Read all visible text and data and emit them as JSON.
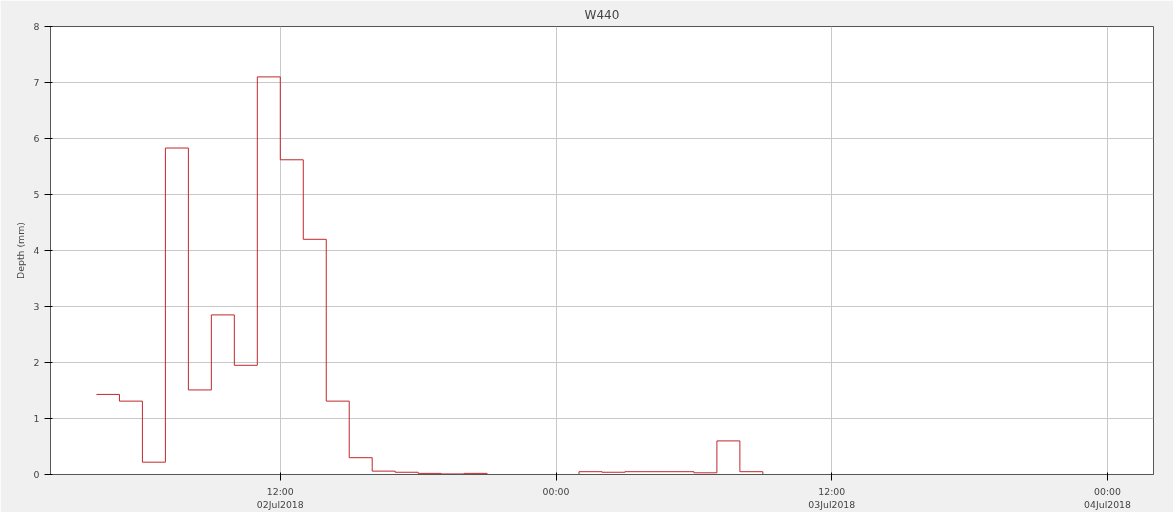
{
  "chart_data": {
    "type": "step",
    "title": "W440",
    "ylabel": "Depth (mm)",
    "x": [
      "2018-07-02T04:00",
      "2018-07-02T05:00",
      "2018-07-02T06:00",
      "2018-07-02T07:00",
      "2018-07-02T08:00",
      "2018-07-02T09:00",
      "2018-07-02T10:00",
      "2018-07-02T11:00",
      "2018-07-02T12:00",
      "2018-07-02T13:00",
      "2018-07-02T14:00",
      "2018-07-02T15:00",
      "2018-07-02T16:00",
      "2018-07-02T17:00",
      "2018-07-02T18:00",
      "2018-07-02T19:00",
      "2018-07-02T20:00",
      "2018-07-02T21:00",
      "2018-07-02T22:00",
      "2018-07-02T23:00",
      "2018-07-03T00:00",
      "2018-07-03T01:00",
      "2018-07-03T02:00",
      "2018-07-03T03:00",
      "2018-07-03T04:00",
      "2018-07-03T05:00",
      "2018-07-03T06:00",
      "2018-07-03T07:00",
      "2018-07-03T08:00",
      "2018-07-03T09:00",
      "2018-07-04T02:00"
    ],
    "series": [
      {
        "color": "#c0282d",
        "values": [
          1.43,
          1.31,
          0.22,
          5.83,
          1.51,
          2.85,
          1.95,
          7.1,
          5.62,
          4.2,
          1.31,
          0.3,
          0.06,
          0.04,
          0.02,
          0.01,
          0.02,
          0,
          0,
          0,
          0,
          0.05,
          0.04,
          0.05,
          0.05,
          0.05,
          0.03,
          0.6,
          0.05,
          0,
          0
        ]
      }
    ],
    "xlim": [
      "2018-07-02T02:00",
      "2018-07-04T02:00"
    ],
    "xticks": [
      {
        "value": "2018-07-02T12:00",
        "label": "12:00\n02Jul2018"
      },
      {
        "value": "2018-07-03T00:00",
        "label": "00:00"
      },
      {
        "value": "2018-07-03T12:00",
        "label": "12:00\n03Jul2018"
      },
      {
        "value": "2018-07-04T00:00",
        "label": "00:00\n04Jul2018"
      }
    ],
    "ylim": [
      0,
      8
    ],
    "yticks": [
      0,
      1,
      2,
      3,
      4,
      5,
      6,
      7,
      8
    ],
    "grid": true
  }
}
